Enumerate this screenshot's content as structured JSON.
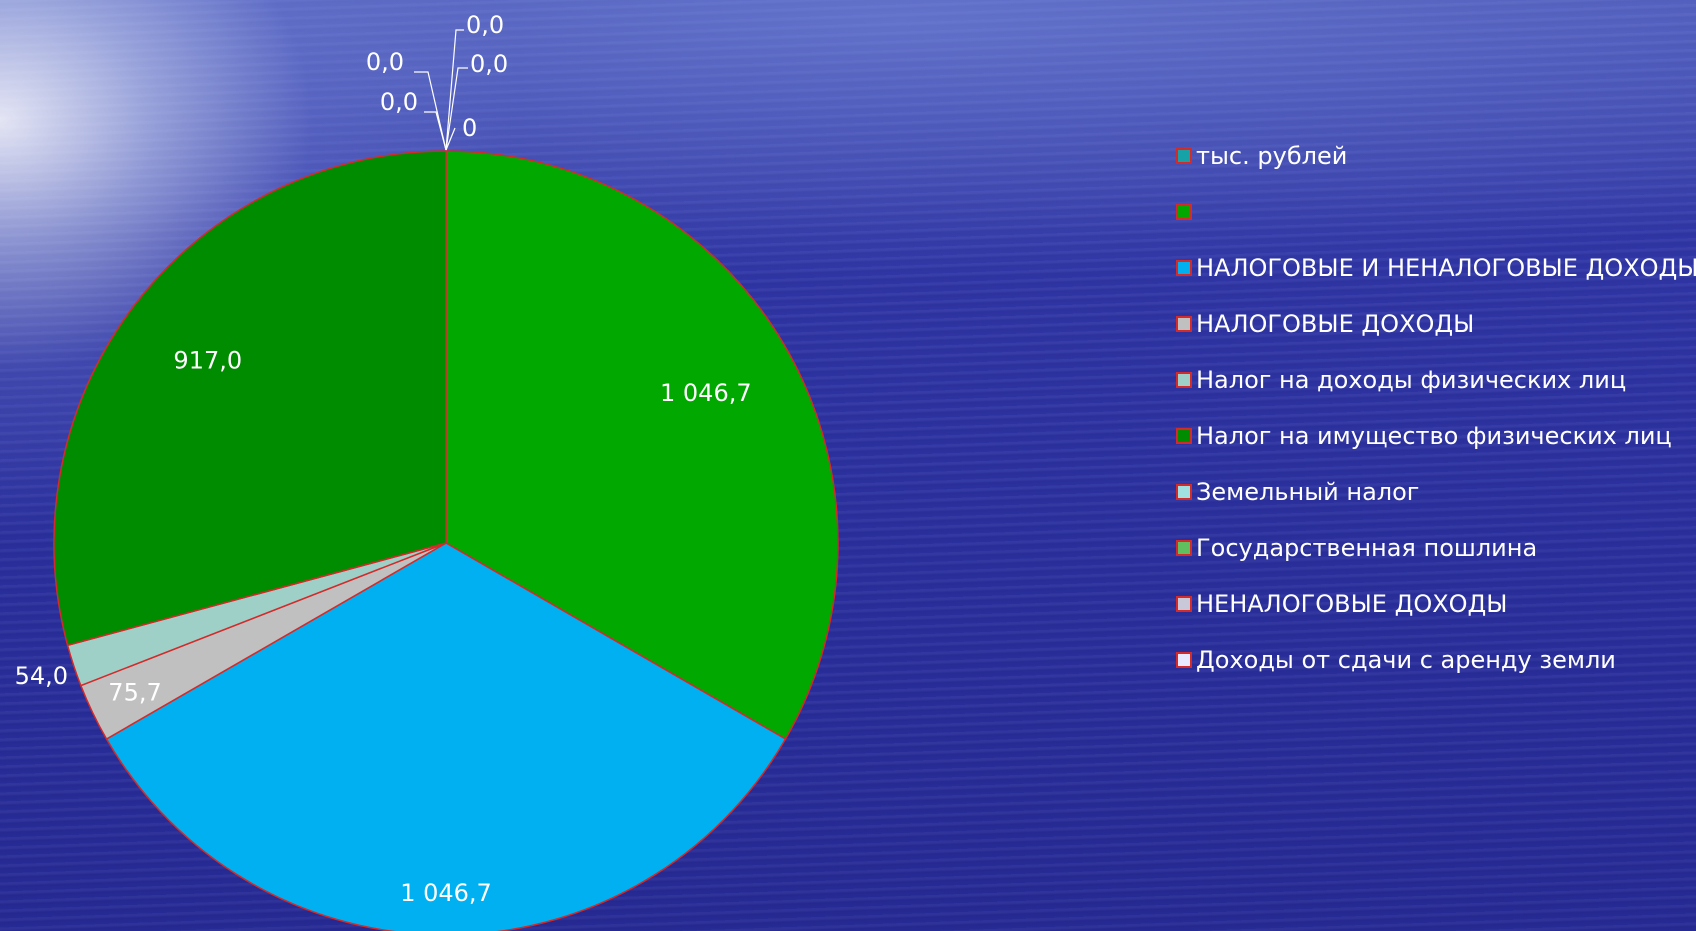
{
  "chart_data": {
    "type": "pie",
    "categories": [
      "тыс. рублей",
      "",
      "НАЛОГОВЫЕ И НЕНАЛОГОВЫЕ ДОХОДЫ",
      "НАЛОГОВЫЕ ДОХОДЫ",
      "Налог на доходы физических лиц",
      "Налог на имущество физических лиц",
      "Земельный налог",
      "Государственная пошлина",
      "НЕНАЛОГОВЫЕ ДОХОДЫ",
      "Доходы от сдачи с аренду земли"
    ],
    "values": [
      0,
      1046.7,
      1046.7,
      75.7,
      54.0,
      917.0,
      0.0,
      0.0,
      0.0,
      0.0
    ],
    "value_labels": [
      "0",
      "1 046,7",
      "1 046,7",
      "75,7",
      "54,0",
      "917,0",
      "0,0",
      "0,0",
      "0,0",
      "0,0"
    ],
    "colors": [
      "#17a2a8",
      "#00a800",
      "#00b0f0",
      "#c0c0c0",
      "#9fd0c8",
      "#008c00",
      "#a0e0e0",
      "#60c060",
      "#c8c8d8",
      "#e8e8ff"
    ],
    "slice_border_color": "#d42a2a",
    "legend_position": "right",
    "start_angle": "top, clockwise"
  }
}
